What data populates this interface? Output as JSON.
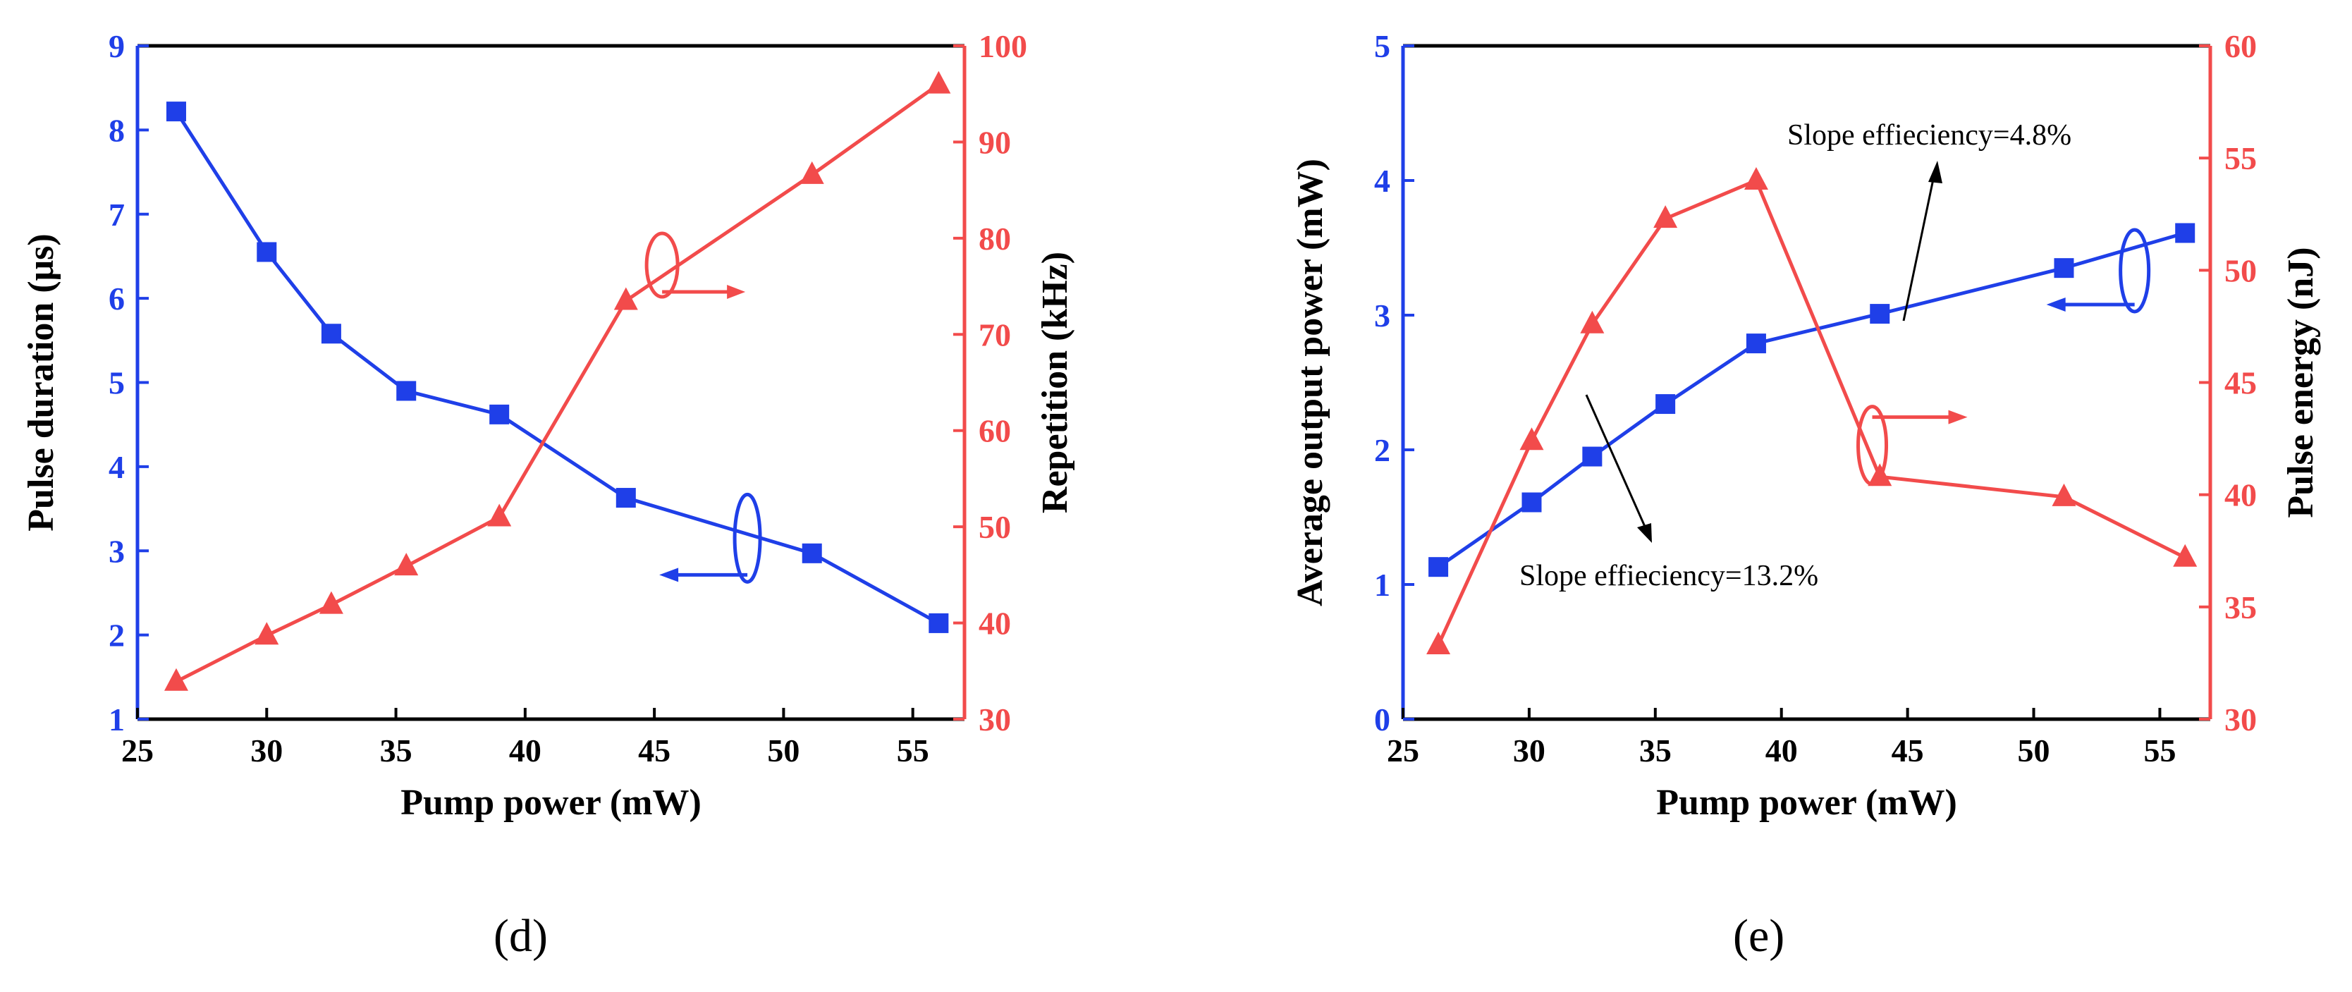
{
  "colors": {
    "blue": "#1f3fe8",
    "red": "#f24b4b",
    "black": "#000000"
  },
  "panels": [
    {
      "label": "(d)"
    },
    {
      "label": "(e)"
    }
  ],
  "chart_data": [
    {
      "type": "line",
      "x": [
        26.5,
        30,
        32.5,
        35.4,
        39,
        43.9,
        51.1,
        56
      ],
      "xlabel": "Pump power (mW)",
      "xlim": [
        25,
        57
      ],
      "xticks": [
        25,
        30,
        35,
        40,
        45,
        50,
        55
      ],
      "y_left": {
        "label": "Pulse duration (μs)",
        "lim": [
          1,
          9
        ],
        "ticks": [
          1,
          2,
          3,
          4,
          5,
          6,
          7,
          8,
          9
        ],
        "color": "#1f3fe8",
        "marker": "square",
        "values": [
          8.22,
          6.55,
          5.58,
          4.9,
          4.62,
          3.63,
          2.97,
          2.14
        ]
      },
      "y_right": {
        "label": "Repetition (kHz)",
        "lim": [
          30,
          100
        ],
        "ticks": [
          30,
          40,
          50,
          60,
          70,
          80,
          90,
          100
        ],
        "color": "#f24b4b",
        "marker": "triangle",
        "values": [
          33.9,
          38.7,
          41.9,
          45.9,
          51.0,
          73.5,
          86.6,
          96.0
        ]
      }
    },
    {
      "type": "line",
      "x": [
        26.4,
        30.1,
        32.5,
        35.4,
        39,
        43.9,
        51.2,
        56
      ],
      "xlabel": "Pump power (mW)",
      "xlim": [
        25,
        57
      ],
      "xticks": [
        25,
        30,
        35,
        40,
        45,
        50,
        55
      ],
      "y_left": {
        "label": "Average output power (mW)",
        "lim": [
          0,
          5
        ],
        "ticks": [
          0,
          1,
          2,
          3,
          4,
          5
        ],
        "color": "#1f3fe8",
        "marker": "square",
        "values": [
          1.13,
          1.61,
          1.95,
          2.34,
          2.79,
          3.01,
          3.35,
          3.61
        ]
      },
      "y_right": {
        "label": "Pulse energy (nJ)",
        "lim": [
          30,
          60
        ],
        "ticks": [
          30,
          35,
          40,
          45,
          50,
          55,
          60
        ],
        "color": "#f24b4b",
        "marker": "triangle",
        "values": [
          33.3,
          42.4,
          47.6,
          52.3,
          54.0,
          40.8,
          39.9,
          37.2
        ]
      },
      "annotations": [
        "Slope effieciency=4.8%",
        "Slope effieciency=13.2%"
      ]
    }
  ]
}
